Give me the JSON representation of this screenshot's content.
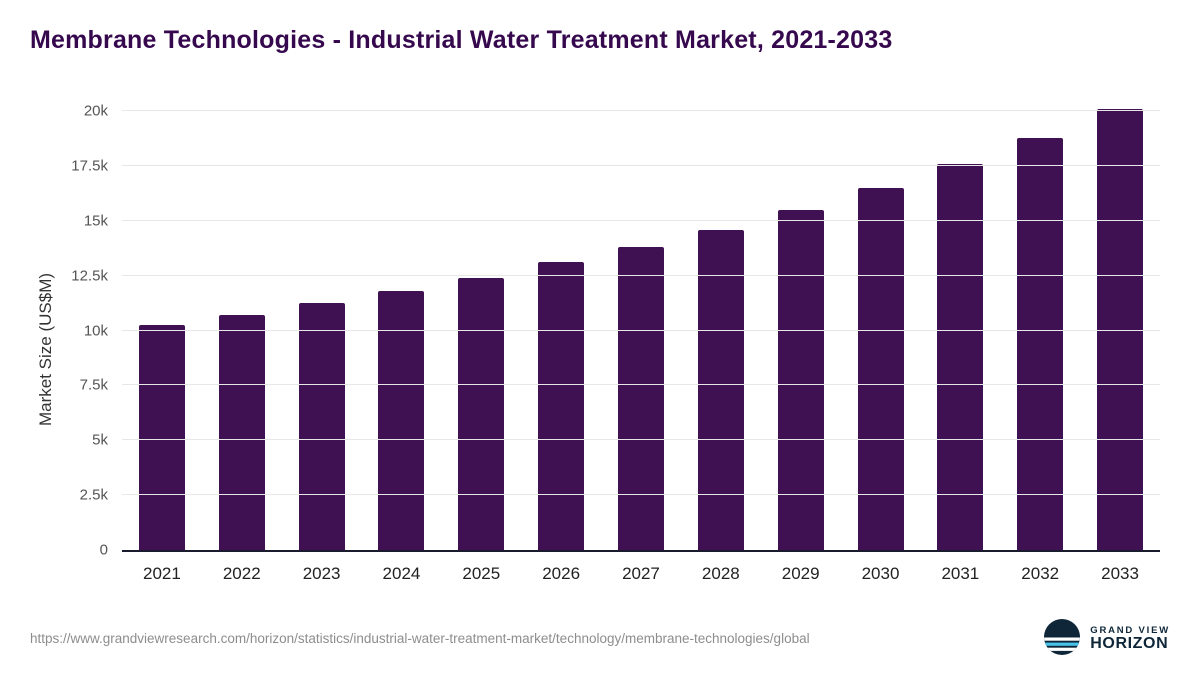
{
  "page": {
    "title": "Membrane Technologies - Industrial Water Treatment Market, 2021-2033"
  },
  "chart_data": {
    "type": "bar",
    "title": "Membrane Technologies - Industrial Water Treatment Market, 2021-2033",
    "xlabel": "",
    "ylabel": "Market Size (US$M)",
    "categories": [
      "2021",
      "2022",
      "2023",
      "2024",
      "2025",
      "2026",
      "2027",
      "2028",
      "2029",
      "2030",
      "2031",
      "2032",
      "2033"
    ],
    "values": [
      10250,
      10700,
      11250,
      11800,
      12400,
      13100,
      13800,
      14600,
      15500,
      16500,
      17600,
      18750,
      20100
    ],
    "ylim": [
      0,
      20500
    ],
    "yticks": [
      {
        "value": 0,
        "label": "0"
      },
      {
        "value": 2500,
        "label": "2.5k"
      },
      {
        "value": 5000,
        "label": "5k"
      },
      {
        "value": 7500,
        "label": "7.5k"
      },
      {
        "value": 10000,
        "label": "10k"
      },
      {
        "value": 12500,
        "label": "12.5k"
      },
      {
        "value": 15000,
        "label": "15k"
      },
      {
        "value": 17500,
        "label": "17.5k"
      },
      {
        "value": 20000,
        "label": "20k"
      }
    ],
    "grid": "horizontal",
    "legend": "none",
    "bar_color": "#3f1152",
    "axis_line_color": "#1b1b2f",
    "gridline_color": "#e7e7e7"
  },
  "footer": {
    "source_url": "https://www.grandviewresearch.com/horizon/statistics/industrial-water-treatment-market/technology/membrane-technologies/global",
    "brand_top": "GRAND VIEW",
    "brand_bottom": "HORIZON",
    "brand_color": "#0e2638",
    "logo_accent": "#49c3ea"
  }
}
